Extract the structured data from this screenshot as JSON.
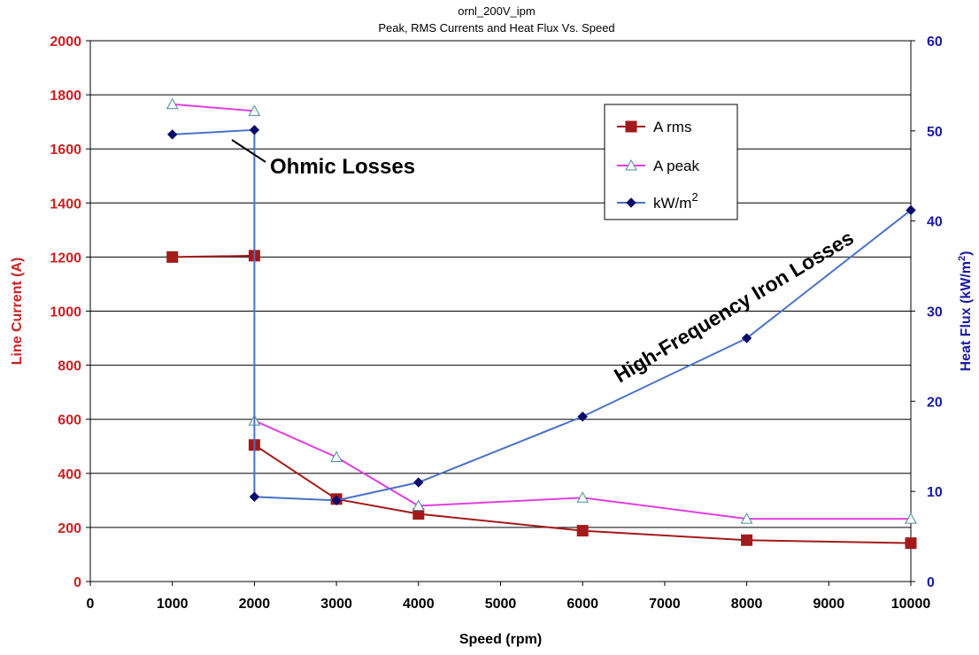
{
  "chart_data": {
    "type": "line",
    "title": "ornl_200V_ipm",
    "subtitle": "Peak, RMS Currents and Heat Flux Vs. Speed",
    "xlabel": "Speed (rpm)",
    "ylabel": "Line Current (A)",
    "y2label": "Heat Flux (kW/m",
    "y2label_sup": "2",
    "y2label_end": ")",
    "xlim": [
      0,
      10000
    ],
    "ylim": [
      0,
      2000
    ],
    "y2lim": [
      0,
      60
    ],
    "xticks": [
      "0",
      "1000",
      "2000",
      "3000",
      "4000",
      "5000",
      "6000",
      "7000",
      "8000",
      "9000",
      "10000"
    ],
    "yticks": [
      "0",
      "200",
      "400",
      "600",
      "800",
      "1000",
      "1200",
      "1400",
      "1600",
      "1800",
      "2000"
    ],
    "y2ticks": [
      "0",
      "10",
      "20",
      "30",
      "40",
      "50",
      "60"
    ],
    "grid": "horizontal",
    "legend_position": "top-right",
    "series": [
      {
        "name": "A rms",
        "axis": "left",
        "color": "#a31a1a",
        "marker": "square",
        "points": [
          [
            1000,
            1200
          ],
          [
            2000,
            1205
          ],
          null,
          [
            2000,
            505
          ],
          [
            3000,
            305
          ],
          [
            4000,
            250
          ],
          [
            6000,
            188
          ],
          [
            8000,
            153
          ],
          [
            10000,
            142
          ]
        ]
      },
      {
        "name": "A peak",
        "axis": "left",
        "color": "#e23ee2",
        "marker": "triangle",
        "points": [
          [
            1000,
            1765
          ],
          [
            2000,
            1740
          ],
          null,
          [
            2000,
            595
          ],
          [
            3000,
            460
          ],
          [
            4000,
            280
          ],
          [
            6000,
            310
          ],
          [
            8000,
            232
          ],
          [
            10000,
            232
          ]
        ]
      },
      {
        "name": "kW/m",
        "name_sup": "2",
        "axis": "right",
        "color": "#4a72c8",
        "marker": "diamond",
        "points": [
          [
            1000,
            49.6
          ],
          [
            2000,
            50.1
          ],
          [
            2000,
            9.4
          ],
          [
            3000,
            9.0
          ],
          [
            4000,
            11.0
          ],
          [
            6000,
            18.3
          ],
          [
            8000,
            27.0
          ],
          [
            10000,
            41.2
          ]
        ]
      }
    ],
    "annotations": [
      {
        "text": "Ohmic Losses"
      },
      {
        "text": "High-Frequency Iron Losses"
      }
    ],
    "colors": {
      "left_axis": "#cc1f1f",
      "right_axis": "#1a1aa0",
      "grid": "#000000"
    }
  }
}
